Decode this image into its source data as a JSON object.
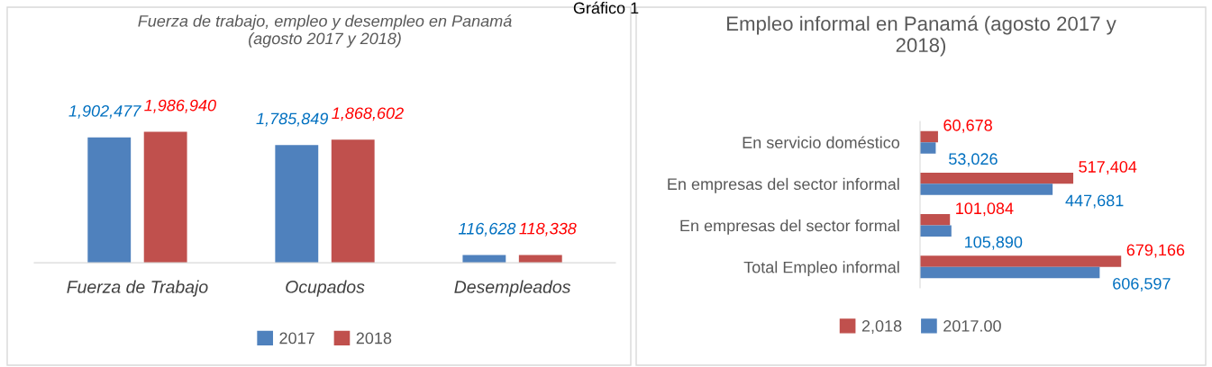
{
  "chart_data": [
    {
      "type": "bar",
      "title": "Fuerza de trabajo, empleo y desempleo en Panamá\n(agosto 2017 y 2018)",
      "annotations": [
        "Gráfico 1"
      ],
      "categories": [
        "Fuerza de Trabajo",
        "Ocupados",
        "Desempleados"
      ],
      "series": [
        {
          "name": "2017",
          "color": "#4f81bd",
          "values": [
            1902477,
            1785849,
            116628
          ],
          "value_labels": [
            "1,902,477",
            "1,785,849",
            "116,628"
          ]
        },
        {
          "name": "2018",
          "color": "#c0504d",
          "values": [
            1986940,
            1868602,
            118338
          ],
          "value_labels": [
            "1,986,940",
            "1,868,602",
            "118,338"
          ]
        }
      ],
      "legend": "bottom"
    },
    {
      "type": "bar",
      "orientation": "horizontal",
      "title": "Empleo informal en Panamá (agosto 2017 y\n2018)",
      "categories": [
        "En servicio doméstico",
        "En empresas del sector informal",
        "En empresas del sector formal",
        "Total Empleo informal"
      ],
      "series": [
        {
          "name": "2,018",
          "color": "#c0504d",
          "values": [
            60678,
            517404,
            101084,
            679166
          ],
          "value_labels": [
            "60,678",
            "517,404",
            "101,084",
            "679,166"
          ]
        },
        {
          "name": "2017.00",
          "color": "#4f81bd",
          "values": [
            53026,
            447681,
            105890,
            606597
          ],
          "value_labels": [
            "53,026",
            "447,681",
            "105,890",
            "606,597"
          ]
        }
      ],
      "legend": "bottom"
    }
  ]
}
